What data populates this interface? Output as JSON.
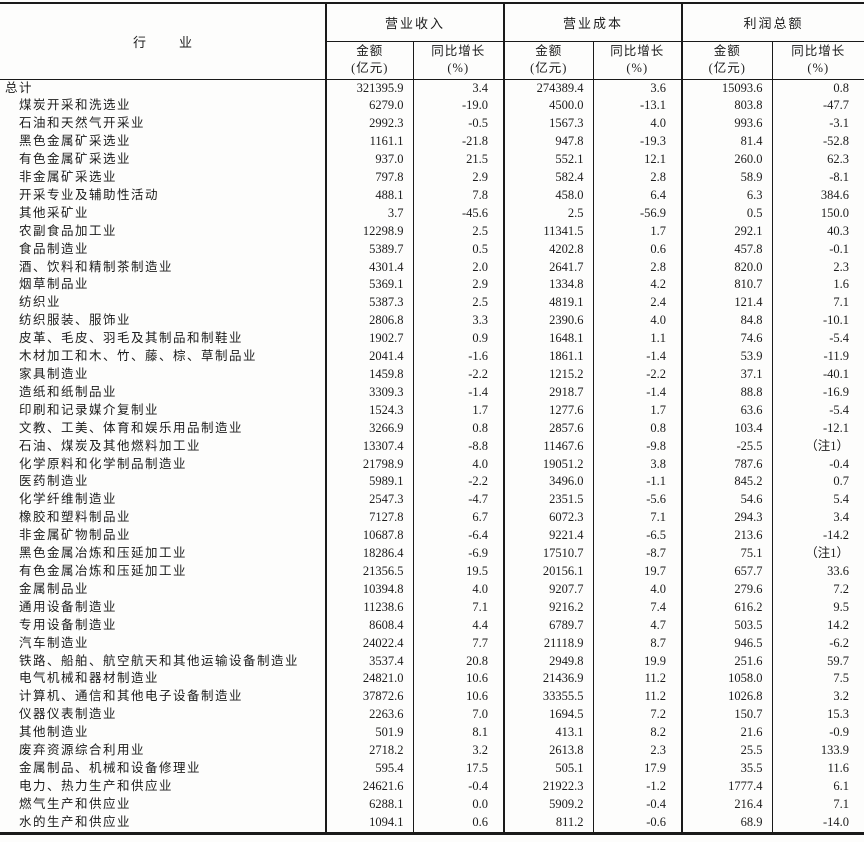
{
  "table": {
    "industry_header": "行　业",
    "groups": [
      {
        "label": "营业收入"
      },
      {
        "label": "营业成本"
      },
      {
        "label": "利润总额"
      }
    ],
    "sub_headers": {
      "amount_line1": "金额",
      "amount_line2": "(亿元)",
      "growth_line1": "同比增长",
      "growth_line2": "(%)"
    },
    "rows": [
      {
        "name": "总计",
        "total": true,
        "values": [
          "321395.9",
          "3.4",
          "274389.4",
          "3.6",
          "15093.6",
          "0.8"
        ]
      },
      {
        "name": "煤炭开采和洗选业",
        "values": [
          "6279.0",
          "-19.0",
          "4500.0",
          "-13.1",
          "803.8",
          "-47.7"
        ]
      },
      {
        "name": "石油和天然气开采业",
        "values": [
          "2992.3",
          "-0.5",
          "1567.3",
          "4.0",
          "993.6",
          "-3.1"
        ]
      },
      {
        "name": "黑色金属矿采选业",
        "values": [
          "1161.1",
          "-21.8",
          "947.8",
          "-19.3",
          "81.4",
          "-52.8"
        ]
      },
      {
        "name": "有色金属矿采选业",
        "values": [
          "937.0",
          "21.5",
          "552.1",
          "12.1",
          "260.0",
          "62.3"
        ]
      },
      {
        "name": "非金属矿采选业",
        "values": [
          "797.8",
          "2.9",
          "582.4",
          "2.8",
          "58.9",
          "-8.1"
        ]
      },
      {
        "name": "开采专业及辅助性活动",
        "values": [
          "488.1",
          "7.8",
          "458.0",
          "6.4",
          "6.3",
          "384.6"
        ]
      },
      {
        "name": "其他采矿业",
        "values": [
          "3.7",
          "-45.6",
          "2.5",
          "-56.9",
          "0.5",
          "150.0"
        ]
      },
      {
        "name": "农副食品加工业",
        "values": [
          "12298.9",
          "2.5",
          "11341.5",
          "1.7",
          "292.1",
          "40.3"
        ]
      },
      {
        "name": "食品制造业",
        "values": [
          "5389.7",
          "0.5",
          "4202.8",
          "0.6",
          "457.8",
          "-0.1"
        ]
      },
      {
        "name": "酒、饮料和精制茶制造业",
        "values": [
          "4301.4",
          "2.0",
          "2641.7",
          "2.8",
          "820.0",
          "2.3"
        ]
      },
      {
        "name": "烟草制品业",
        "values": [
          "5369.1",
          "2.9",
          "1334.8",
          "4.2",
          "810.7",
          "1.6"
        ]
      },
      {
        "name": "纺织业",
        "values": [
          "5387.3",
          "2.5",
          "4819.1",
          "2.4",
          "121.4",
          "7.1"
        ]
      },
      {
        "name": "纺织服装、服饰业",
        "values": [
          "2806.8",
          "3.3",
          "2390.6",
          "4.0",
          "84.8",
          "-10.1"
        ]
      },
      {
        "name": "皮革、毛皮、羽毛及其制品和制鞋业",
        "values": [
          "1902.7",
          "0.9",
          "1648.1",
          "1.1",
          "74.6",
          "-5.4"
        ]
      },
      {
        "name": "木材加工和木、竹、藤、棕、草制品业",
        "values": [
          "2041.4",
          "-1.6",
          "1861.1",
          "-1.4",
          "53.9",
          "-11.9"
        ]
      },
      {
        "name": "家具制造业",
        "values": [
          "1459.8",
          "-2.2",
          "1215.2",
          "-2.2",
          "37.1",
          "-40.1"
        ]
      },
      {
        "name": "造纸和纸制品业",
        "values": [
          "3309.3",
          "-1.4",
          "2918.7",
          "-1.4",
          "88.8",
          "-16.9"
        ]
      },
      {
        "name": "印刷和记录媒介复制业",
        "values": [
          "1524.3",
          "1.7",
          "1277.6",
          "1.7",
          "63.6",
          "-5.4"
        ]
      },
      {
        "name": "文教、工美、体育和娱乐用品制造业",
        "values": [
          "3266.9",
          "0.8",
          "2857.6",
          "0.8",
          "103.4",
          "-12.1"
        ]
      },
      {
        "name": "石油、煤炭及其他燃料加工业",
        "values": [
          "13307.4",
          "-8.8",
          "11467.6",
          "-9.8",
          "-25.5",
          "（注1）"
        ]
      },
      {
        "name": "化学原料和化学制品制造业",
        "values": [
          "21798.9",
          "4.0",
          "19051.2",
          "3.8",
          "787.6",
          "-0.4"
        ]
      },
      {
        "name": "医药制造业",
        "values": [
          "5989.1",
          "-2.2",
          "3496.0",
          "-1.1",
          "845.2",
          "0.7"
        ]
      },
      {
        "name": "化学纤维制造业",
        "values": [
          "2547.3",
          "-4.7",
          "2351.5",
          "-5.6",
          "54.6",
          "5.4"
        ]
      },
      {
        "name": "橡胶和塑料制品业",
        "values": [
          "7127.8",
          "6.7",
          "6072.3",
          "7.1",
          "294.3",
          "3.4"
        ]
      },
      {
        "name": "非金属矿物制品业",
        "values": [
          "10687.8",
          "-6.4",
          "9221.4",
          "-6.5",
          "213.6",
          "-14.2"
        ]
      },
      {
        "name": "黑色金属冶炼和压延加工业",
        "values": [
          "18286.4",
          "-6.9",
          "17510.7",
          "-8.7",
          "75.1",
          "（注1）"
        ]
      },
      {
        "name": "有色金属冶炼和压延加工业",
        "values": [
          "21356.5",
          "19.5",
          "20156.1",
          "19.7",
          "657.7",
          "33.6"
        ]
      },
      {
        "name": "金属制品业",
        "values": [
          "10394.8",
          "4.0",
          "9207.7",
          "4.0",
          "279.6",
          "7.2"
        ]
      },
      {
        "name": "通用设备制造业",
        "values": [
          "11238.6",
          "7.1",
          "9216.2",
          "7.4",
          "616.2",
          "9.5"
        ]
      },
      {
        "name": "专用设备制造业",
        "values": [
          "8608.4",
          "4.4",
          "6789.7",
          "4.7",
          "503.5",
          "14.2"
        ]
      },
      {
        "name": "汽车制造业",
        "values": [
          "24022.4",
          "7.7",
          "21118.9",
          "8.7",
          "946.5",
          "-6.2"
        ]
      },
      {
        "name": "铁路、船舶、航空航天和其他运输设备制造业",
        "values": [
          "3537.4",
          "20.8",
          "2949.8",
          "19.9",
          "251.6",
          "59.7"
        ]
      },
      {
        "name": "电气机械和器材制造业",
        "values": [
          "24821.0",
          "10.6",
          "21436.9",
          "11.2",
          "1058.0",
          "7.5"
        ]
      },
      {
        "name": "计算机、通信和其他电子设备制造业",
        "values": [
          "37872.6",
          "10.6",
          "33355.5",
          "11.2",
          "1026.8",
          "3.2"
        ]
      },
      {
        "name": "仪器仪表制造业",
        "values": [
          "2263.6",
          "7.0",
          "1694.5",
          "7.2",
          "150.7",
          "15.3"
        ]
      },
      {
        "name": "其他制造业",
        "values": [
          "501.9",
          "8.1",
          "413.1",
          "8.2",
          "21.6",
          "-0.9"
        ]
      },
      {
        "name": "废弃资源综合利用业",
        "values": [
          "2718.2",
          "3.2",
          "2613.8",
          "2.3",
          "25.5",
          "133.9"
        ]
      },
      {
        "name": "金属制品、机械和设备修理业",
        "values": [
          "595.4",
          "17.5",
          "505.1",
          "17.9",
          "35.5",
          "11.6"
        ]
      },
      {
        "name": "电力、热力生产和供应业",
        "values": [
          "24621.6",
          "-0.4",
          "21922.3",
          "-1.2",
          "1777.4",
          "6.1"
        ]
      },
      {
        "name": "燃气生产和供应业",
        "values": [
          "6288.1",
          "0.0",
          "5909.2",
          "-0.4",
          "216.4",
          "7.1"
        ]
      },
      {
        "name": "水的生产和供应业",
        "values": [
          "1094.1",
          "0.6",
          "811.2",
          "-0.6",
          "68.9",
          "-14.0"
        ]
      }
    ]
  }
}
